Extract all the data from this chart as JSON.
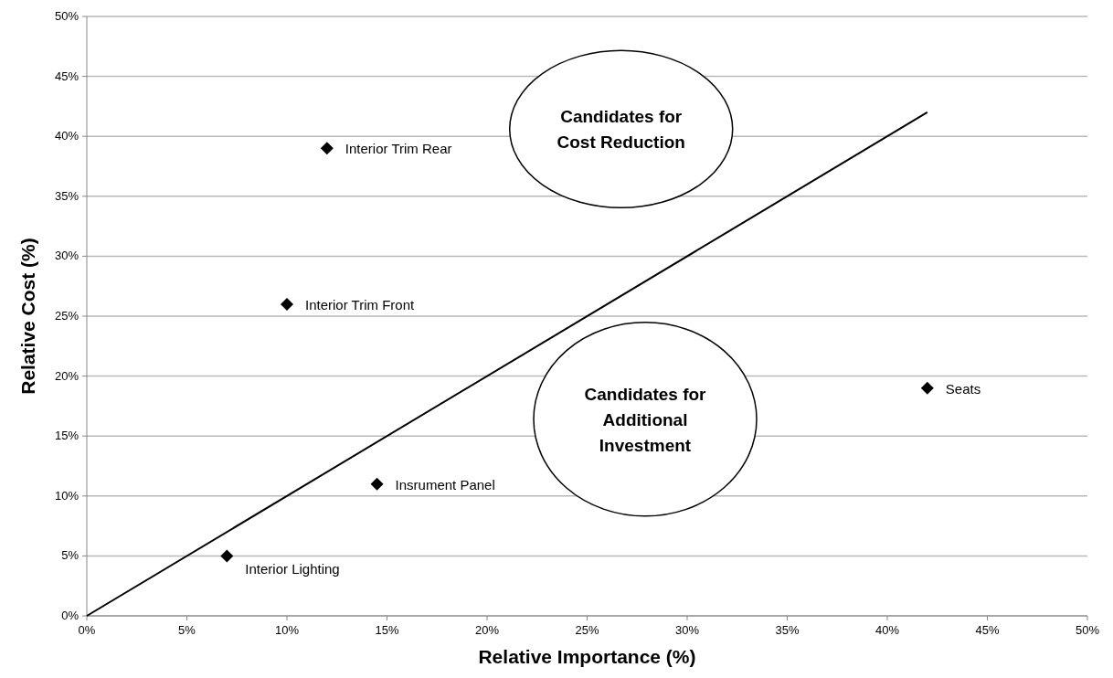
{
  "chart_data": {
    "type": "scatter",
    "xlabel": "Relative Importance (%)",
    "ylabel": "Relative Cost (%)",
    "xlim": [
      0,
      50
    ],
    "ylim": [
      0,
      50
    ],
    "xticks": [
      {
        "value": 0,
        "label": "0%"
      },
      {
        "value": 5,
        "label": "5%"
      },
      {
        "value": 10,
        "label": "10%"
      },
      {
        "value": 15,
        "label": "15%"
      },
      {
        "value": 20,
        "label": "20%"
      },
      {
        "value": 25,
        "label": "25%"
      },
      {
        "value": 30,
        "label": "30%"
      },
      {
        "value": 35,
        "label": "35%"
      },
      {
        "value": 40,
        "label": "40%"
      },
      {
        "value": 45,
        "label": "45%"
      },
      {
        "value": 50,
        "label": "50%"
      }
    ],
    "yticks": [
      {
        "value": 0,
        "label": "0%"
      },
      {
        "value": 5,
        "label": "5%"
      },
      {
        "value": 10,
        "label": "10%"
      },
      {
        "value": 15,
        "label": "15%"
      },
      {
        "value": 20,
        "label": "20%"
      },
      {
        "value": 25,
        "label": "25%"
      },
      {
        "value": 30,
        "label": "30%"
      },
      {
        "value": 35,
        "label": "35%"
      },
      {
        "value": 40,
        "label": "40%"
      },
      {
        "value": 45,
        "label": "45%"
      },
      {
        "value": 50,
        "label": "50%"
      }
    ],
    "grid": "y",
    "series": [
      {
        "color": "#000000",
        "marker": "diamond",
        "x": [
          12,
          10,
          42,
          14.5,
          7
        ],
        "values": [
          39,
          26,
          19,
          11,
          5
        ]
      },
      {
        "type": "line",
        "color": "#000000",
        "x": [
          0,
          42
        ],
        "values": [
          0,
          42
        ]
      }
    ],
    "annotations": [
      {
        "text": "Interior Trim Rear",
        "x": 12,
        "y": 39
      },
      {
        "text": "Interior Trim Front",
        "x": 10,
        "y": 26
      },
      {
        "text": "Seats",
        "x": 42,
        "y": 19
      },
      {
        "text": "Insrument Panel",
        "x": 14.5,
        "y": 11
      },
      {
        "text": "Interior Lighting",
        "x": 7,
        "y": 5
      },
      "Candidates for\nCost Reduction",
      "Candidates for\nAdditional\nInvestment"
    ]
  }
}
